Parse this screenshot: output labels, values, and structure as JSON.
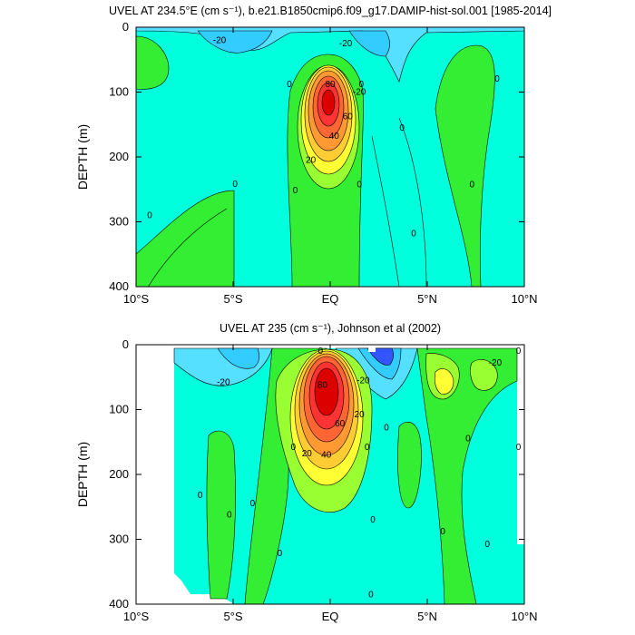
{
  "colors": {
    "cyan_deep": "#33ccff",
    "cyan_mid": "#55e0ff",
    "cyan_light": "#00ffdd",
    "blue": "#3355ff",
    "blue_dark": "#1a3ae6",
    "green_dark": "#33cc33",
    "green": "#33ee33",
    "lime": "#99ff33",
    "yellow": "#ffff33",
    "orange_light": "#ffcc33",
    "orange": "#ff9933",
    "orange_dark": "#ff6633",
    "red": "#ff3333",
    "red_dark": "#dd0000"
  },
  "chart_data": [
    {
      "type": "contour",
      "title": "UVEL AT 234.5°E (cm s⁻¹), b.e21.B1850cmip6.f09_g17.DAMIP-hist-sol.001 [1985-2014]",
      "ylabel": "DEPTH (m)",
      "xlim": [
        -10,
        10
      ],
      "ylim": [
        400,
        0
      ],
      "x_ticks": [
        {
          "value": -10,
          "label": "10°S"
        },
        {
          "value": -5,
          "label": "5°S"
        },
        {
          "value": 0,
          "label": "EQ"
        },
        {
          "value": 5,
          "label": "5°N"
        },
        {
          "value": 10,
          "label": "10°N"
        }
      ],
      "y_ticks": [
        {
          "value": 0,
          "label": "0"
        },
        {
          "value": 100,
          "label": "100"
        },
        {
          "value": 200,
          "label": "200"
        },
        {
          "value": 300,
          "label": "300"
        },
        {
          "value": 400,
          "label": "400"
        }
      ],
      "jets": [
        {
          "lat": 0,
          "depth": 115,
          "max_speed": 100,
          "half_width_lat": 1.2,
          "half_depth": 55
        },
        {
          "lat": 2.3,
          "depth": 20,
          "max_speed": -30,
          "half_width_lat": 1.0,
          "half_depth": 20
        }
      ],
      "contour_labels": [
        {
          "lat": -5.7,
          "depth": 20,
          "text": "-20"
        },
        {
          "lat": 0.8,
          "depth": 25,
          "text": "-20"
        },
        {
          "lat": 1.5,
          "depth": 100,
          "text": "-20"
        },
        {
          "lat": -2.1,
          "depth": 88,
          "text": "0"
        },
        {
          "lat": 1.6,
          "depth": 88,
          "text": "0"
        },
        {
          "lat": 0.0,
          "depth": 88,
          "text": "80"
        },
        {
          "lat": 0.9,
          "depth": 138,
          "text": "60"
        },
        {
          "lat": 0.2,
          "depth": 168,
          "text": "40"
        },
        {
          "lat": -1.0,
          "depth": 205,
          "text": "20"
        },
        {
          "lat": 3.7,
          "depth": 155,
          "text": "0"
        },
        {
          "lat": 8.6,
          "depth": 80,
          "text": "0"
        },
        {
          "lat": -9.3,
          "depth": 290,
          "text": "0"
        },
        {
          "lat": -4.9,
          "depth": 242,
          "text": "0"
        },
        {
          "lat": -1.8,
          "depth": 252,
          "text": "0"
        },
        {
          "lat": 1.5,
          "depth": 243,
          "text": "0"
        },
        {
          "lat": 4.3,
          "depth": 318,
          "text": "0"
        },
        {
          "lat": 7.3,
          "depth": 243,
          "text": "0"
        }
      ]
    },
    {
      "type": "contour",
      "title": "UVEL AT 235 (cm s⁻¹), Johnson et al (2002)",
      "ylabel": "DEPTH (m)",
      "xlim": [
        -10,
        10
      ],
      "ylim": [
        400,
        0
      ],
      "data_lat_range": [
        -8,
        9.8
      ],
      "x_ticks": [
        {
          "value": -10,
          "label": "10°S"
        },
        {
          "value": -5,
          "label": "5°S"
        },
        {
          "value": 0,
          "label": "EQ"
        },
        {
          "value": 5,
          "label": "5°N"
        },
        {
          "value": 10,
          "label": "10°N"
        }
      ],
      "y_ticks": [
        {
          "value": 0,
          "label": "0"
        },
        {
          "value": 100,
          "label": "100"
        },
        {
          "value": 200,
          "label": "200"
        },
        {
          "value": 300,
          "label": "300"
        },
        {
          "value": 400,
          "label": "400"
        }
      ],
      "jets": [
        {
          "lat": -0.2,
          "depth": 90,
          "max_speed": 110,
          "half_width_lat": 1.3,
          "half_depth": 55
        },
        {
          "lat": 2.5,
          "depth": 15,
          "max_speed": -40,
          "half_width_lat": 1.2,
          "half_depth": 25
        }
      ],
      "contour_labels": [
        {
          "lat": -5.5,
          "depth": 58,
          "text": "-20"
        },
        {
          "lat": 1.7,
          "depth": 55,
          "text": "-20"
        },
        {
          "lat": 1.5,
          "depth": 108,
          "text": "20"
        },
        {
          "lat": -0.4,
          "depth": 62,
          "text": "80"
        },
        {
          "lat": 0.5,
          "depth": 122,
          "text": "60"
        },
        {
          "lat": -0.2,
          "depth": 170,
          "text": "40"
        },
        {
          "lat": -1.2,
          "depth": 168,
          "text": "20"
        },
        {
          "lat": 8.5,
          "depth": 28,
          "text": "-20"
        },
        {
          "lat": -0.5,
          "depth": 10,
          "text": "0"
        },
        {
          "lat": -6.7,
          "depth": 232,
          "text": "0"
        },
        {
          "lat": -5.2,
          "depth": 262,
          "text": "0"
        },
        {
          "lat": -4.0,
          "depth": 245,
          "text": "0"
        },
        {
          "lat": -1.9,
          "depth": 158,
          "text": "0"
        },
        {
          "lat": 1.9,
          "depth": 158,
          "text": "0"
        },
        {
          "lat": 2.9,
          "depth": 128,
          "text": "0"
        },
        {
          "lat": 7.1,
          "depth": 145,
          "text": "0"
        },
        {
          "lat": 9.7,
          "depth": 158,
          "text": "0"
        },
        {
          "lat": 9.7,
          "depth": 10,
          "text": "0"
        },
        {
          "lat": 2.2,
          "depth": 270,
          "text": "0"
        },
        {
          "lat": 5.8,
          "depth": 288,
          "text": "0"
        },
        {
          "lat": -2.6,
          "depth": 322,
          "text": "0"
        },
        {
          "lat": 8.1,
          "depth": 308,
          "text": "0"
        },
        {
          "lat": 2.1,
          "depth": 385,
          "text": "0"
        }
      ]
    }
  ]
}
